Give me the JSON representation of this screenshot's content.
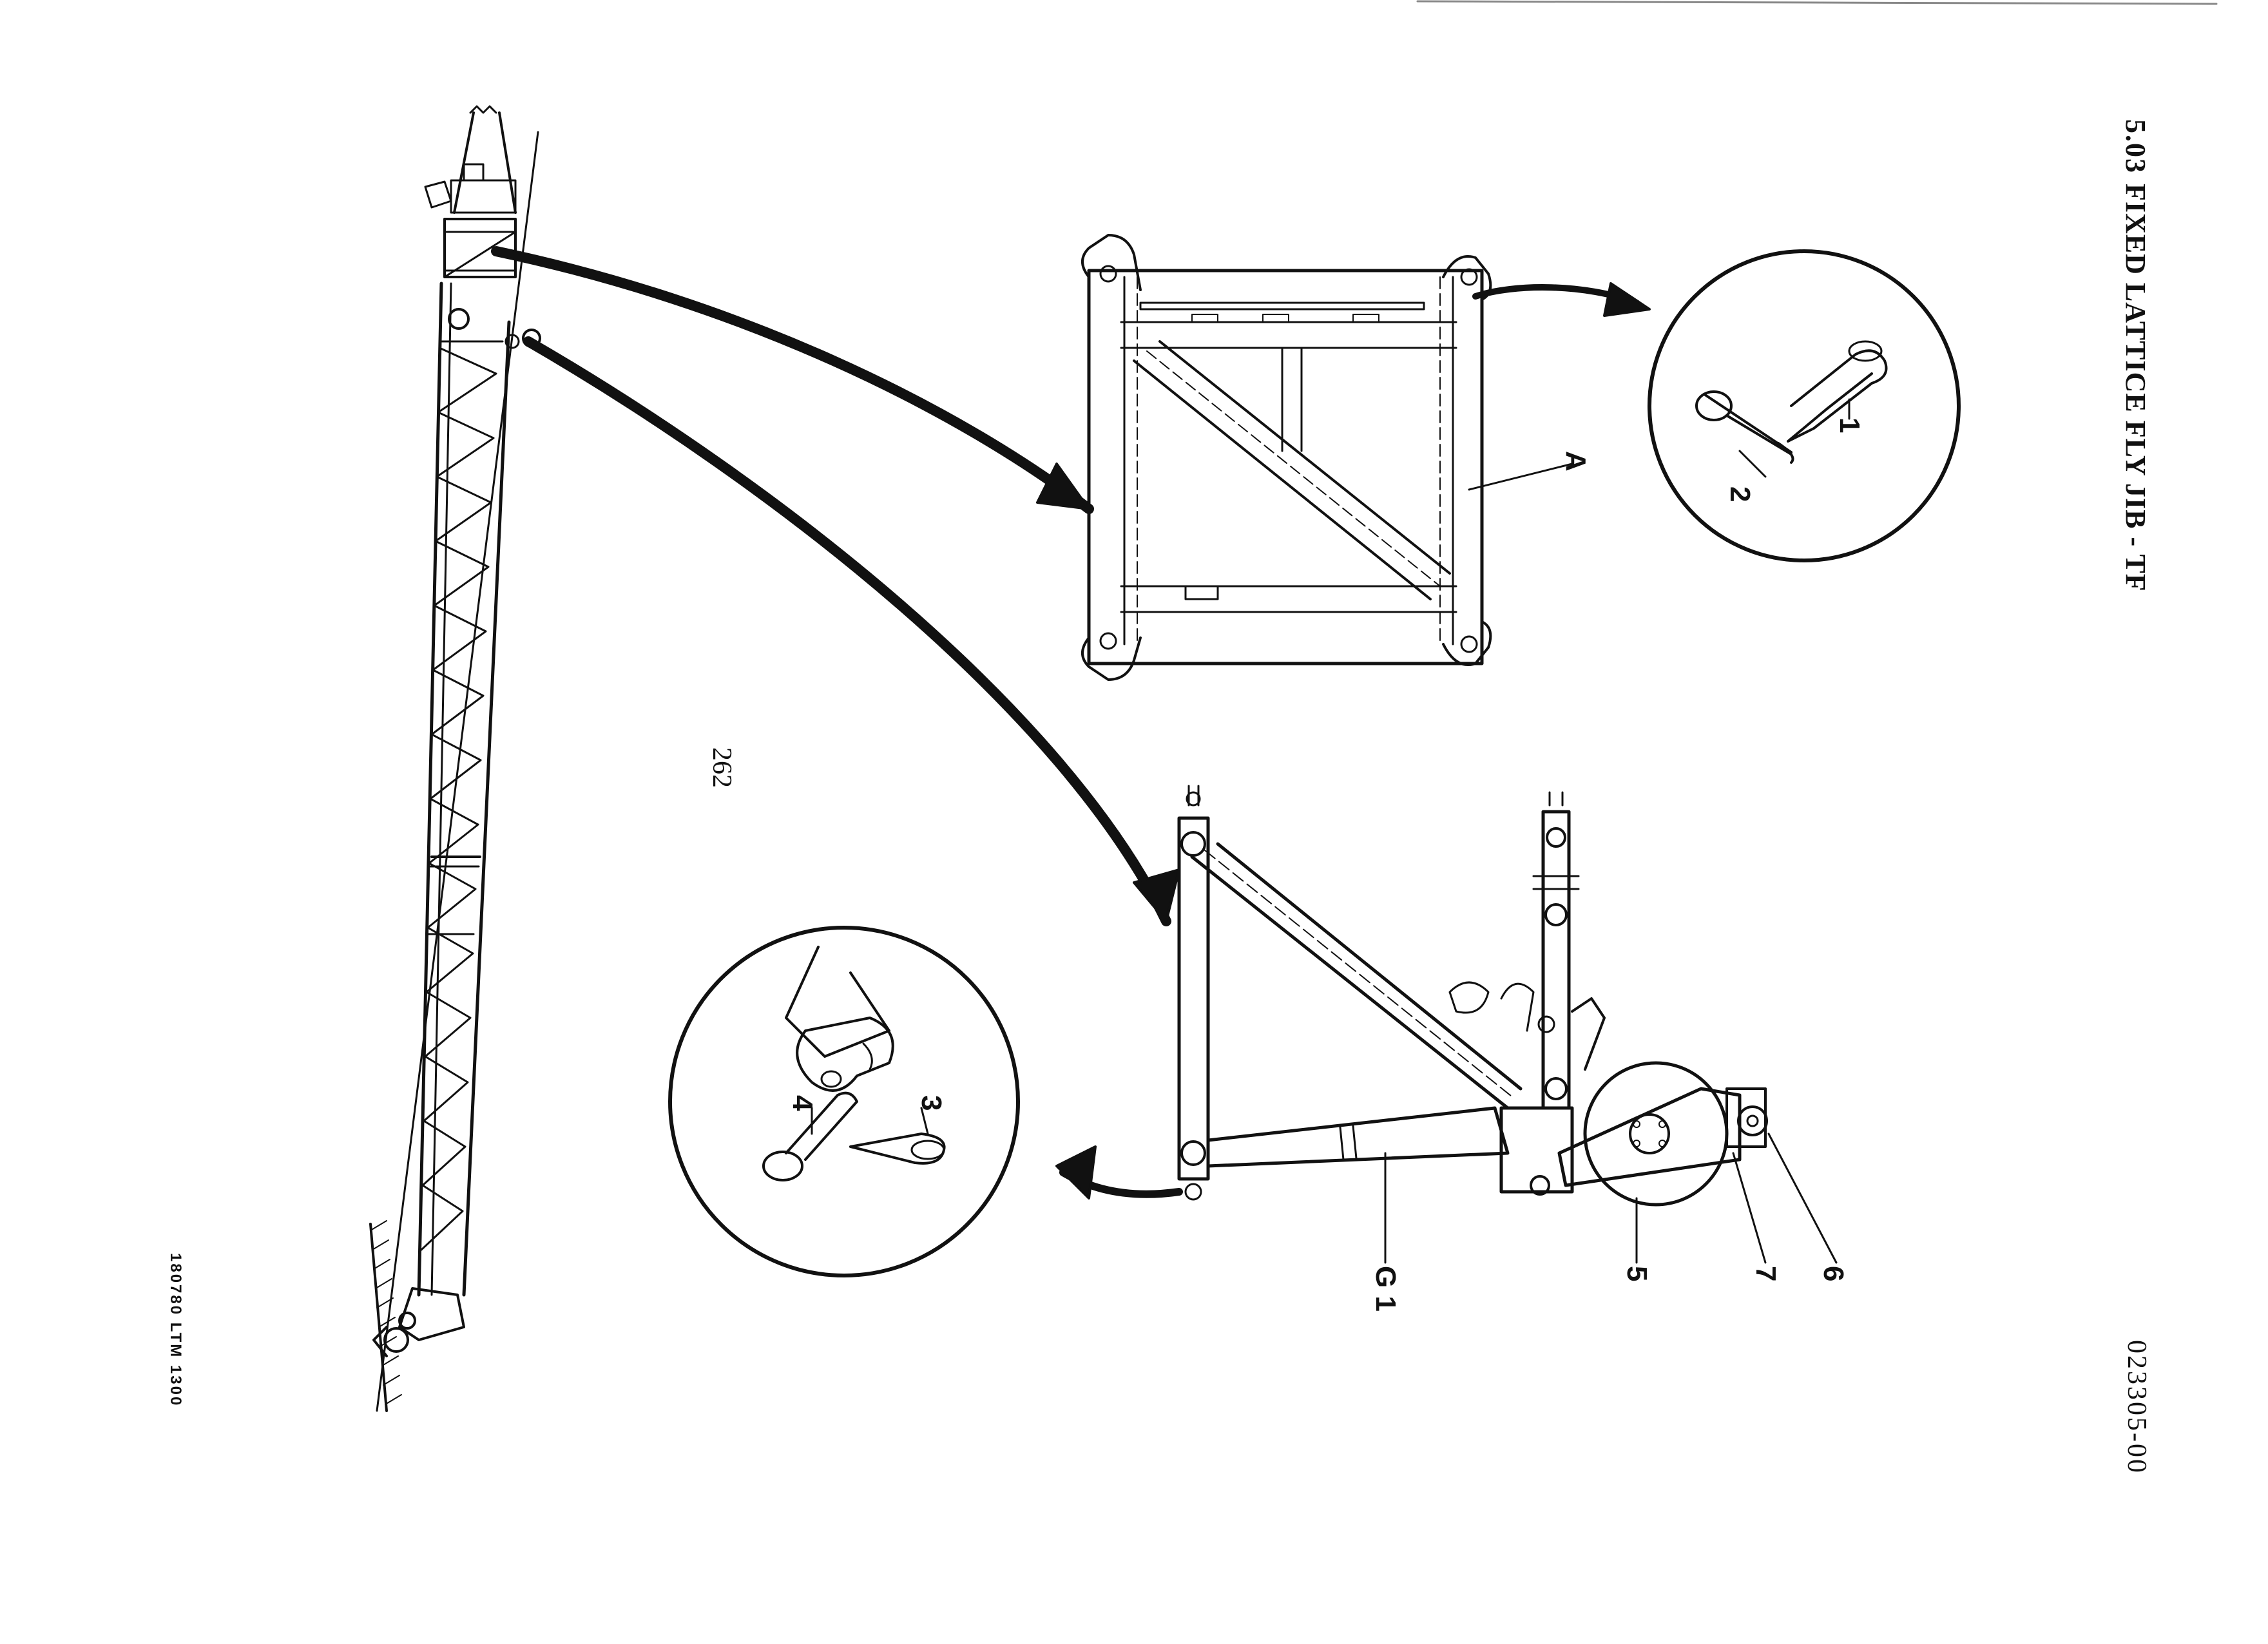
{
  "header": {
    "section_number": "5.03",
    "section_title": "FIXED LATTICE FLY JIB - TF",
    "drawing_number": "023305-00"
  },
  "footer": {
    "page_number": "262",
    "doc_ref": "180780   LTM 1300"
  },
  "callouts": {
    "c1": "1",
    "c2": "2",
    "c3": "3",
    "c4": "4",
    "c5": "5",
    "c6": "6",
    "c7": "7",
    "cA": "A",
    "cG1": "G 1"
  },
  "figure_parts": [
    "jib-overview-icon",
    "lattice-section-a-detail",
    "pin-and-retaining-clip-detail-top",
    "head-section-g1-detail",
    "pin-and-retaining-clip-detail-bottom"
  ]
}
